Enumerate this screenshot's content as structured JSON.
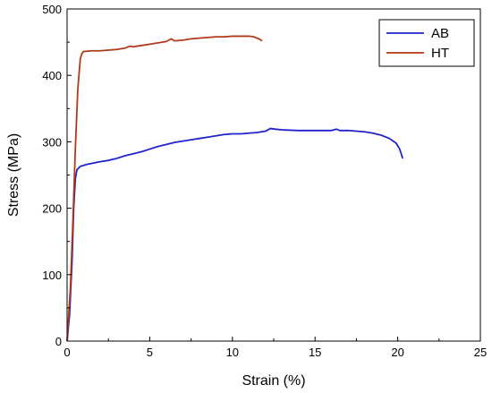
{
  "chart_data": {
    "type": "line",
    "xlabel": "Strain (%)",
    "ylabel": "Stress (MPa)",
    "xlim": [
      0,
      25
    ],
    "ylim": [
      0,
      500
    ],
    "xticks": [
      0,
      5,
      10,
      15,
      20,
      25
    ],
    "yticks": [
      0,
      100,
      200,
      300,
      400,
      500
    ],
    "grid": false,
    "legend_position": "top-right",
    "series": [
      {
        "name": "AB",
        "color": "#2222cc",
        "points": [
          [
            0,
            0
          ],
          [
            0.15,
            40
          ],
          [
            0.3,
            120
          ],
          [
            0.4,
            200
          ],
          [
            0.5,
            245
          ],
          [
            0.6,
            258
          ],
          [
            0.8,
            263
          ],
          [
            1.2,
            266
          ],
          [
            1.6,
            268
          ],
          [
            2.0,
            270
          ],
          [
            2.5,
            272
          ],
          [
            3.0,
            275
          ],
          [
            3.5,
            279
          ],
          [
            4.0,
            282
          ],
          [
            4.5,
            285
          ],
          [
            5.0,
            289
          ],
          [
            5.5,
            293
          ],
          [
            6.0,
            296
          ],
          [
            6.5,
            299
          ],
          [
            7.0,
            301
          ],
          [
            7.5,
            303
          ],
          [
            8.0,
            305
          ],
          [
            8.5,
            307
          ],
          [
            9.0,
            309
          ],
          [
            9.5,
            311
          ],
          [
            10.0,
            312
          ],
          [
            10.5,
            312
          ],
          [
            11.0,
            313
          ],
          [
            11.5,
            314
          ],
          [
            12.0,
            316
          ],
          [
            12.3,
            320
          ],
          [
            12.6,
            319
          ],
          [
            13.0,
            318
          ],
          [
            14.0,
            317
          ],
          [
            15.0,
            317
          ],
          [
            16.0,
            317
          ],
          [
            16.3,
            319
          ],
          [
            16.5,
            317
          ],
          [
            17.0,
            317
          ],
          [
            17.5,
            316
          ],
          [
            18.0,
            315
          ],
          [
            18.5,
            313
          ],
          [
            19.0,
            310
          ],
          [
            19.5,
            305
          ],
          [
            19.9,
            298
          ],
          [
            20.1,
            290
          ],
          [
            20.2,
            283
          ],
          [
            20.3,
            275
          ]
        ]
      },
      {
        "name": "HT",
        "color": "#b03a1a",
        "points": [
          [
            0,
            0
          ],
          [
            0.2,
            80
          ],
          [
            0.35,
            180
          ],
          [
            0.5,
            290
          ],
          [
            0.65,
            380
          ],
          [
            0.8,
            425
          ],
          [
            0.9,
            433
          ],
          [
            1.0,
            436
          ],
          [
            1.5,
            437
          ],
          [
            2.0,
            437
          ],
          [
            2.5,
            438
          ],
          [
            3.0,
            439
          ],
          [
            3.5,
            441
          ],
          [
            3.8,
            444
          ],
          [
            4.0,
            443
          ],
          [
            4.5,
            445
          ],
          [
            5.0,
            447
          ],
          [
            5.5,
            449
          ],
          [
            6.0,
            451
          ],
          [
            6.3,
            455
          ],
          [
            6.5,
            452
          ],
          [
            7.0,
            453
          ],
          [
            7.5,
            455
          ],
          [
            8.0,
            456
          ],
          [
            8.5,
            457
          ],
          [
            9.0,
            458
          ],
          [
            9.5,
            458
          ],
          [
            10.0,
            459
          ],
          [
            10.5,
            459
          ],
          [
            11.0,
            459
          ],
          [
            11.3,
            458
          ],
          [
            11.6,
            455
          ],
          [
            11.8,
            452
          ]
        ]
      }
    ]
  }
}
